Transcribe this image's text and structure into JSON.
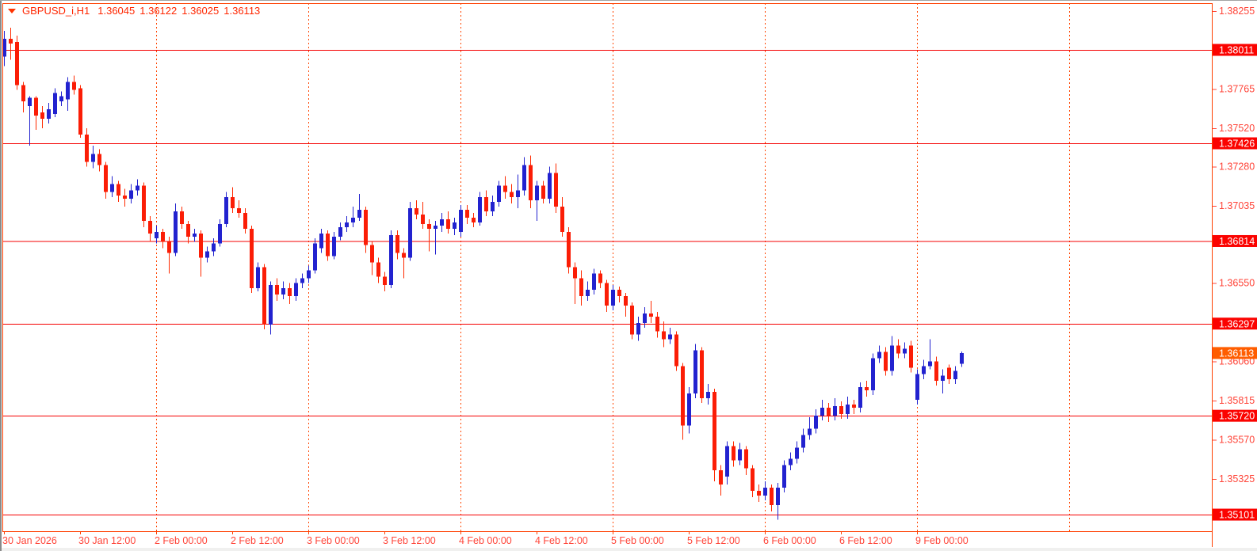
{
  "title_bar": {
    "symbol_period": "GBPUSD_i,H1",
    "open": "1.36045",
    "high": "1.36122",
    "low": "1.36025",
    "close": "1.36113"
  },
  "colors": {
    "plot_bg": "#ffffff",
    "outer_bg": "#f0f0ef",
    "frame": "#ff3f00",
    "grid": "#ff4400",
    "level_line": "#f50000",
    "level_box_bg": "#fb0300",
    "current_box_bg": "#ff5d00",
    "box_text": "#ffffff",
    "axis_text": "#ff4438",
    "title_text": "#ff2600",
    "bull_body": "#2222cf",
    "bull_wick": "#2222cf",
    "bear_body": "#fb1d06",
    "bear_wick": "#ff2a00"
  },
  "y_axis": {
    "ticks": [
      "1.38255",
      "1.37765",
      "1.37520",
      "1.37280",
      "1.37035",
      "1.36550",
      "1.36060",
      "1.35815",
      "1.35570",
      "1.35325"
    ],
    "level_labels": [
      "1.38011",
      "1.37426",
      "1.36814",
      "1.36297",
      "1.35720",
      "1.35101"
    ],
    "current_price_label": "1.36113"
  },
  "x_axis": {
    "labels": [
      "30 Jan 2026",
      "30 Jan 12:00",
      "2 Feb 00:00",
      "2 Feb 12:00",
      "3 Feb 00:00",
      "3 Feb 12:00",
      "4 Feb 00:00",
      "4 Feb 12:00",
      "5 Feb 00:00",
      "5 Feb 12:00",
      "6 Feb 00:00",
      "6 Feb 12:00",
      "9 Feb 00:00"
    ]
  },
  "chart_data": {
    "type": "candlestick",
    "symbol": "GBPUSD_i",
    "timeframe": "H1",
    "title": "GBPUSD_i,H1  1.36045 1.36122 1.36025 1.36113",
    "ohlc_format": "[open, high, low, close]",
    "bars_per_x_tick": 12,
    "x_tick_labels": [
      "30 Jan 2026",
      "30 Jan 12:00",
      "2 Feb 00:00",
      "2 Feb 12:00",
      "3 Feb 00:00",
      "3 Feb 12:00",
      "4 Feb 00:00",
      "4 Feb 12:00",
      "5 Feb 00:00",
      "5 Feb 12:00",
      "6 Feb 00:00",
      "6 Feb 12:00",
      "9 Feb 00:00"
    ],
    "y_ticks": [
      1.38255,
      1.37765,
      1.3752,
      1.3728,
      1.37035,
      1.3655,
      1.3606,
      1.35815,
      1.3557,
      1.35325
    ],
    "horizontal_levels": [
      1.38011,
      1.37426,
      1.36814,
      1.36297,
      1.3572,
      1.35101
    ],
    "current_price": 1.36113,
    "y_range_visible": [
      1.34997,
      1.38303
    ],
    "candles": [
      [
        1.3797,
        1.3813,
        1.3791,
        1.3808
      ],
      [
        1.3808,
        1.3815,
        1.3795,
        1.3805
      ],
      [
        1.3806,
        1.381,
        1.3776,
        1.3779
      ],
      [
        1.3779,
        1.3781,
        1.3762,
        1.3769
      ],
      [
        1.3766,
        1.3772,
        1.3741,
        1.3771
      ],
      [
        1.3771,
        1.3772,
        1.3751,
        1.376
      ],
      [
        1.3762,
        1.3766,
        1.3752,
        1.3758
      ],
      [
        1.3758,
        1.3768,
        1.3755,
        1.3764
      ],
      [
        1.3761,
        1.3777,
        1.3759,
        1.3774
      ],
      [
        1.3769,
        1.3775,
        1.3766,
        1.3772
      ],
      [
        1.377,
        1.3784,
        1.3763,
        1.3781
      ],
      [
        1.3781,
        1.3785,
        1.3773,
        1.3776
      ],
      [
        1.3777,
        1.3779,
        1.3746,
        1.3748
      ],
      [
        1.3748,
        1.3752,
        1.3728,
        1.3731
      ],
      [
        1.3731,
        1.3741,
        1.3727,
        1.3736
      ],
      [
        1.3736,
        1.3739,
        1.3725,
        1.3729
      ],
      [
        1.3729,
        1.3731,
        1.3708,
        1.3712
      ],
      [
        1.3712,
        1.3722,
        1.3709,
        1.3717
      ],
      [
        1.3717,
        1.3719,
        1.3706,
        1.371
      ],
      [
        1.371,
        1.3714,
        1.3703,
        1.3708
      ],
      [
        1.3708,
        1.3717,
        1.3705,
        1.3713
      ],
      [
        1.3713,
        1.372,
        1.371,
        1.3716
      ],
      [
        1.3716,
        1.3718,
        1.369,
        1.3694
      ],
      [
        1.3694,
        1.3697,
        1.3681,
        1.3686
      ],
      [
        1.3683,
        1.3691,
        1.368,
        1.3687
      ],
      [
        1.3687,
        1.3689,
        1.3677,
        1.3681
      ],
      [
        1.3681,
        1.3684,
        1.3661,
        1.3674
      ],
      [
        1.3674,
        1.3705,
        1.3672,
        1.37
      ],
      [
        1.37,
        1.3703,
        1.3689,
        1.3692
      ],
      [
        1.3692,
        1.3694,
        1.368,
        1.3684
      ],
      [
        1.3684,
        1.3689,
        1.3681,
        1.3686
      ],
      [
        1.3686,
        1.3688,
        1.3659,
        1.3671
      ],
      [
        1.3671,
        1.3678,
        1.3668,
        1.3675
      ],
      [
        1.3675,
        1.3683,
        1.3672,
        1.368
      ],
      [
        1.368,
        1.3695,
        1.3678,
        1.3692
      ],
      [
        1.3692,
        1.3712,
        1.369,
        1.3709
      ],
      [
        1.3709,
        1.3715,
        1.3699,
        1.3702
      ],
      [
        1.3702,
        1.3707,
        1.3696,
        1.3699
      ],
      [
        1.3699,
        1.3702,
        1.3686,
        1.3689
      ],
      [
        1.3689,
        1.3691,
        1.3649,
        1.3652
      ],
      [
        1.3652,
        1.3668,
        1.365,
        1.3665
      ],
      [
        1.3665,
        1.3667,
        1.3626,
        1.3629
      ],
      [
        1.3629,
        1.3656,
        1.3623,
        1.3654
      ],
      [
        1.3654,
        1.3658,
        1.3644,
        1.3648
      ],
      [
        1.3648,
        1.3656,
        1.3645,
        1.3652
      ],
      [
        1.3652,
        1.3655,
        1.3642,
        1.3647
      ],
      [
        1.3647,
        1.3658,
        1.3644,
        1.3655
      ],
      [
        1.3655,
        1.3661,
        1.3652,
        1.3658
      ],
      [
        1.3658,
        1.3666,
        1.3655,
        1.3663
      ],
      [
        1.3663,
        1.3683,
        1.3661,
        1.368
      ],
      [
        1.3677,
        1.3689,
        1.3674,
        1.3686
      ],
      [
        1.3686,
        1.3688,
        1.3669,
        1.3672
      ],
      [
        1.3672,
        1.3687,
        1.367,
        1.3684
      ],
      [
        1.3684,
        1.3693,
        1.3682,
        1.369
      ],
      [
        1.369,
        1.3697,
        1.3687,
        1.3693
      ],
      [
        1.3693,
        1.3703,
        1.369,
        1.3696
      ],
      [
        1.3696,
        1.3711,
        1.3694,
        1.3701
      ],
      [
        1.3701,
        1.3703,
        1.3674,
        1.3679
      ],
      [
        1.3679,
        1.3681,
        1.366,
        1.3668
      ],
      [
        1.3668,
        1.3671,
        1.3655,
        1.3659
      ],
      [
        1.3659,
        1.3662,
        1.365,
        1.3654
      ],
      [
        1.3654,
        1.3688,
        1.3652,
        1.3685
      ],
      [
        1.3685,
        1.3688,
        1.367,
        1.3674
      ],
      [
        1.3674,
        1.3677,
        1.3658,
        1.3671
      ],
      [
        1.3671,
        1.3706,
        1.3669,
        1.3702
      ],
      [
        1.3702,
        1.3707,
        1.3695,
        1.3698
      ],
      [
        1.3698,
        1.3706,
        1.3689,
        1.3692
      ],
      [
        1.3692,
        1.3695,
        1.3675,
        1.3689
      ],
      [
        1.3689,
        1.3694,
        1.3673,
        1.3691
      ],
      [
        1.3691,
        1.3699,
        1.3687,
        1.3695
      ],
      [
        1.3695,
        1.37,
        1.3686,
        1.3689
      ],
      [
        1.3689,
        1.3696,
        1.3685,
        1.3693
      ],
      [
        1.3687,
        1.3704,
        1.3684,
        1.3701
      ],
      [
        1.3701,
        1.3704,
        1.3692,
        1.3696
      ],
      [
        1.3696,
        1.3699,
        1.369,
        1.3693
      ],
      [
        1.3693,
        1.3712,
        1.3691,
        1.3709
      ],
      [
        1.3709,
        1.3713,
        1.3697,
        1.37
      ],
      [
        1.37,
        1.371,
        1.3697,
        1.3706
      ],
      [
        1.3706,
        1.3719,
        1.3703,
        1.3716
      ],
      [
        1.3716,
        1.3722,
        1.3708,
        1.3712
      ],
      [
        1.3712,
        1.3717,
        1.3705,
        1.3709
      ],
      [
        1.3709,
        1.3723,
        1.3702,
        1.3713
      ],
      [
        1.3713,
        1.3734,
        1.371,
        1.3729
      ],
      [
        1.3729,
        1.3735,
        1.3702,
        1.3707
      ],
      [
        1.3707,
        1.3719,
        1.3694,
        1.3716
      ],
      [
        1.3716,
        1.3719,
        1.3705,
        1.3708
      ],
      [
        1.3708,
        1.3728,
        1.3705,
        1.3724
      ],
      [
        1.3724,
        1.373,
        1.3699,
        1.3703
      ],
      [
        1.3703,
        1.3709,
        1.3684,
        1.3687
      ],
      [
        1.3687,
        1.369,
        1.3661,
        1.3665
      ],
      [
        1.3665,
        1.3668,
        1.3642,
        1.3658
      ],
      [
        1.3658,
        1.3663,
        1.3641,
        1.3647
      ],
      [
        1.3647,
        1.3656,
        1.3644,
        1.3651
      ],
      [
        1.3651,
        1.3664,
        1.3648,
        1.3661
      ],
      [
        1.3661,
        1.3663,
        1.3652,
        1.3655
      ],
      [
        1.3655,
        1.3657,
        1.3637,
        1.3641
      ],
      [
        1.3641,
        1.3654,
        1.3638,
        1.3651
      ],
      [
        1.3651,
        1.3653,
        1.3643,
        1.3647
      ],
      [
        1.3647,
        1.3649,
        1.3634,
        1.3641
      ],
      [
        1.3641,
        1.3643,
        1.362,
        1.3623
      ],
      [
        1.3623,
        1.3634,
        1.3619,
        1.363
      ],
      [
        1.363,
        1.364,
        1.3627,
        1.3636
      ],
      [
        1.3636,
        1.3644,
        1.363,
        1.3634
      ],
      [
        1.3634,
        1.3637,
        1.3621,
        1.3625
      ],
      [
        1.3625,
        1.3631,
        1.3615,
        1.362
      ],
      [
        1.362,
        1.3627,
        1.3617,
        1.3623
      ],
      [
        1.3623,
        1.3625,
        1.36,
        1.3603
      ],
      [
        1.3603,
        1.3605,
        1.3557,
        1.3566
      ],
      [
        1.3566,
        1.359,
        1.3561,
        1.3586
      ],
      [
        1.3586,
        1.3617,
        1.3583,
        1.3613
      ],
      [
        1.3613,
        1.3615,
        1.358,
        1.3583
      ],
      [
        1.3583,
        1.3592,
        1.3579,
        1.3587
      ],
      [
        1.3587,
        1.3589,
        1.3531,
        1.3538
      ],
      [
        1.3538,
        1.3541,
        1.3522,
        1.3529
      ],
      [
        1.3534,
        1.3556,
        1.3529,
        1.3553
      ],
      [
        1.3553,
        1.3556,
        1.354,
        1.3544
      ],
      [
        1.3544,
        1.3555,
        1.3541,
        1.3551
      ],
      [
        1.3551,
        1.3553,
        1.3535,
        1.3539
      ],
      [
        1.3539,
        1.3541,
        1.3521,
        1.3525
      ],
      [
        1.3525,
        1.3529,
        1.3518,
        1.3522
      ],
      [
        1.3522,
        1.3531,
        1.3519,
        1.3527
      ],
      [
        1.3527,
        1.3529,
        1.3512,
        1.3516
      ],
      [
        1.3516,
        1.353,
        1.3507,
        1.3527
      ],
      [
        1.3527,
        1.3544,
        1.3524,
        1.3541
      ],
      [
        1.3541,
        1.3549,
        1.3538,
        1.3545
      ],
      [
        1.3545,
        1.3556,
        1.3542,
        1.3552
      ],
      [
        1.3552,
        1.3564,
        1.3549,
        1.356
      ],
      [
        1.356,
        1.3571,
        1.3557,
        1.3564
      ],
      [
        1.3564,
        1.3576,
        1.3561,
        1.3572
      ],
      [
        1.3572,
        1.3582,
        1.3569,
        1.3577
      ],
      [
        1.3577,
        1.358,
        1.3568,
        1.3572
      ],
      [
        1.3572,
        1.3583,
        1.3569,
        1.3578
      ],
      [
        1.3578,
        1.3581,
        1.357,
        1.3573
      ],
      [
        1.3573,
        1.3584,
        1.357,
        1.3579
      ],
      [
        1.3579,
        1.3582,
        1.3573,
        1.3577
      ],
      [
        1.3577,
        1.3593,
        1.3574,
        1.359
      ],
      [
        1.359,
        1.3594,
        1.3584,
        1.3588
      ],
      [
        1.3588,
        1.3611,
        1.3585,
        1.3608
      ],
      [
        1.3608,
        1.3616,
        1.3605,
        1.3612
      ],
      [
        1.3612,
        1.3615,
        1.3597,
        1.36
      ],
      [
        1.36,
        1.3622,
        1.3597,
        1.3616
      ],
      [
        1.3616,
        1.362,
        1.3608,
        1.3611
      ],
      [
        1.3611,
        1.3618,
        1.3608,
        1.3614
      ],
      [
        1.3616,
        1.3619,
        1.3599,
        1.3602
      ],
      [
        1.3582,
        1.3601,
        1.3579,
        1.3598
      ],
      [
        1.3598,
        1.3607,
        1.3595,
        1.3603
      ],
      [
        1.3603,
        1.362,
        1.3601,
        1.3606
      ],
      [
        1.3606,
        1.3609,
        1.3591,
        1.3594
      ],
      [
        1.3594,
        1.3601,
        1.3586,
        1.3597
      ],
      [
        1.3602,
        1.3604,
        1.3592,
        1.3595
      ],
      [
        1.3595,
        1.3603,
        1.3592,
        1.36
      ],
      [
        1.36045,
        1.36122,
        1.36025,
        1.36113
      ]
    ]
  }
}
